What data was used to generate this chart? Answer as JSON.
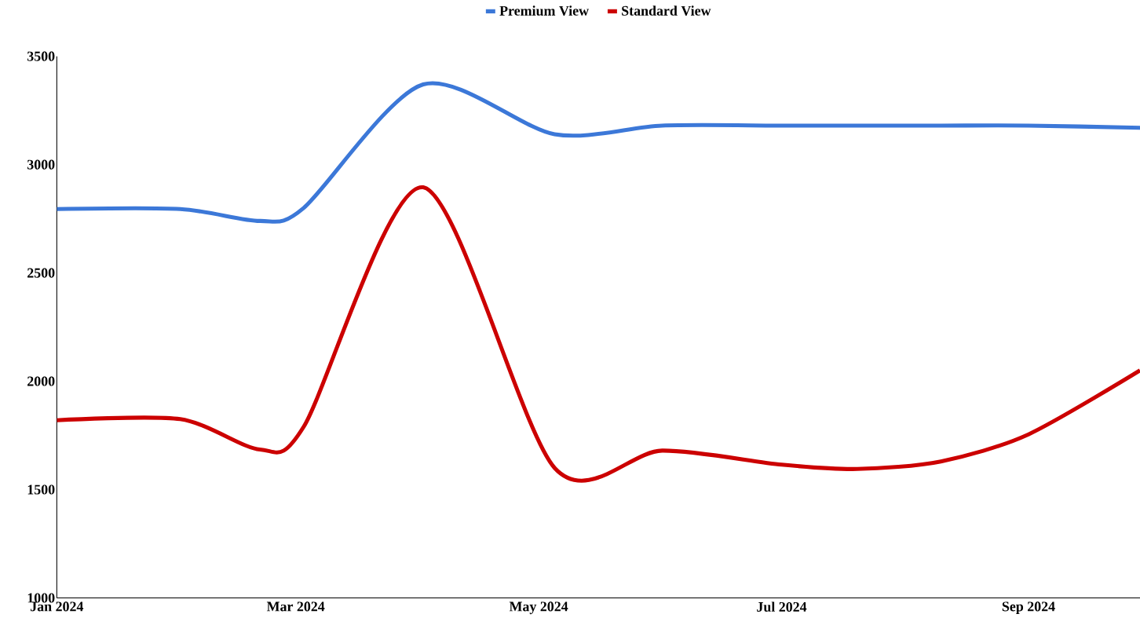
{
  "chart_data": {
    "type": "line",
    "x": [
      "2024-01-01",
      "2024-02-01",
      "2024-02-21",
      "2024-03-03",
      "2024-04-02",
      "2024-05-05",
      "2024-06-01",
      "2024-07-01",
      "2024-07-20",
      "2024-08-10",
      "2024-09-01",
      "2024-09-29"
    ],
    "series": [
      {
        "name": "Premium View",
        "color": "#3c78d8",
        "values": [
          2795,
          2795,
          2740,
          2800,
          3370,
          3140,
          3180,
          3180,
          3180,
          3180,
          3180,
          3170
        ]
      },
      {
        "name": "Standard View",
        "color": "#cc0000",
        "values": [
          1820,
          1825,
          1685,
          1790,
          2895,
          1600,
          1680,
          1615,
          1595,
          1630,
          1755,
          2050
        ]
      }
    ],
    "xlim": [
      "2024-01-01",
      "2024-09-29"
    ],
    "xticks": [
      {
        "value": "2024-01-01",
        "label": "Jan 2024"
      },
      {
        "value": "2024-03-01",
        "label": "Mar 2024"
      },
      {
        "value": "2024-05-01",
        "label": "May 2024"
      },
      {
        "value": "2024-07-01",
        "label": "Jul 2024"
      },
      {
        "value": "2024-09-01",
        "label": "Sep 2024"
      }
    ],
    "ylim": [
      1000,
      3500
    ],
    "yticks": [
      1000,
      1500,
      2000,
      2500,
      3000,
      3500
    ],
    "grid": false,
    "legend": "top",
    "marker": "none",
    "line_style": "solid"
  }
}
